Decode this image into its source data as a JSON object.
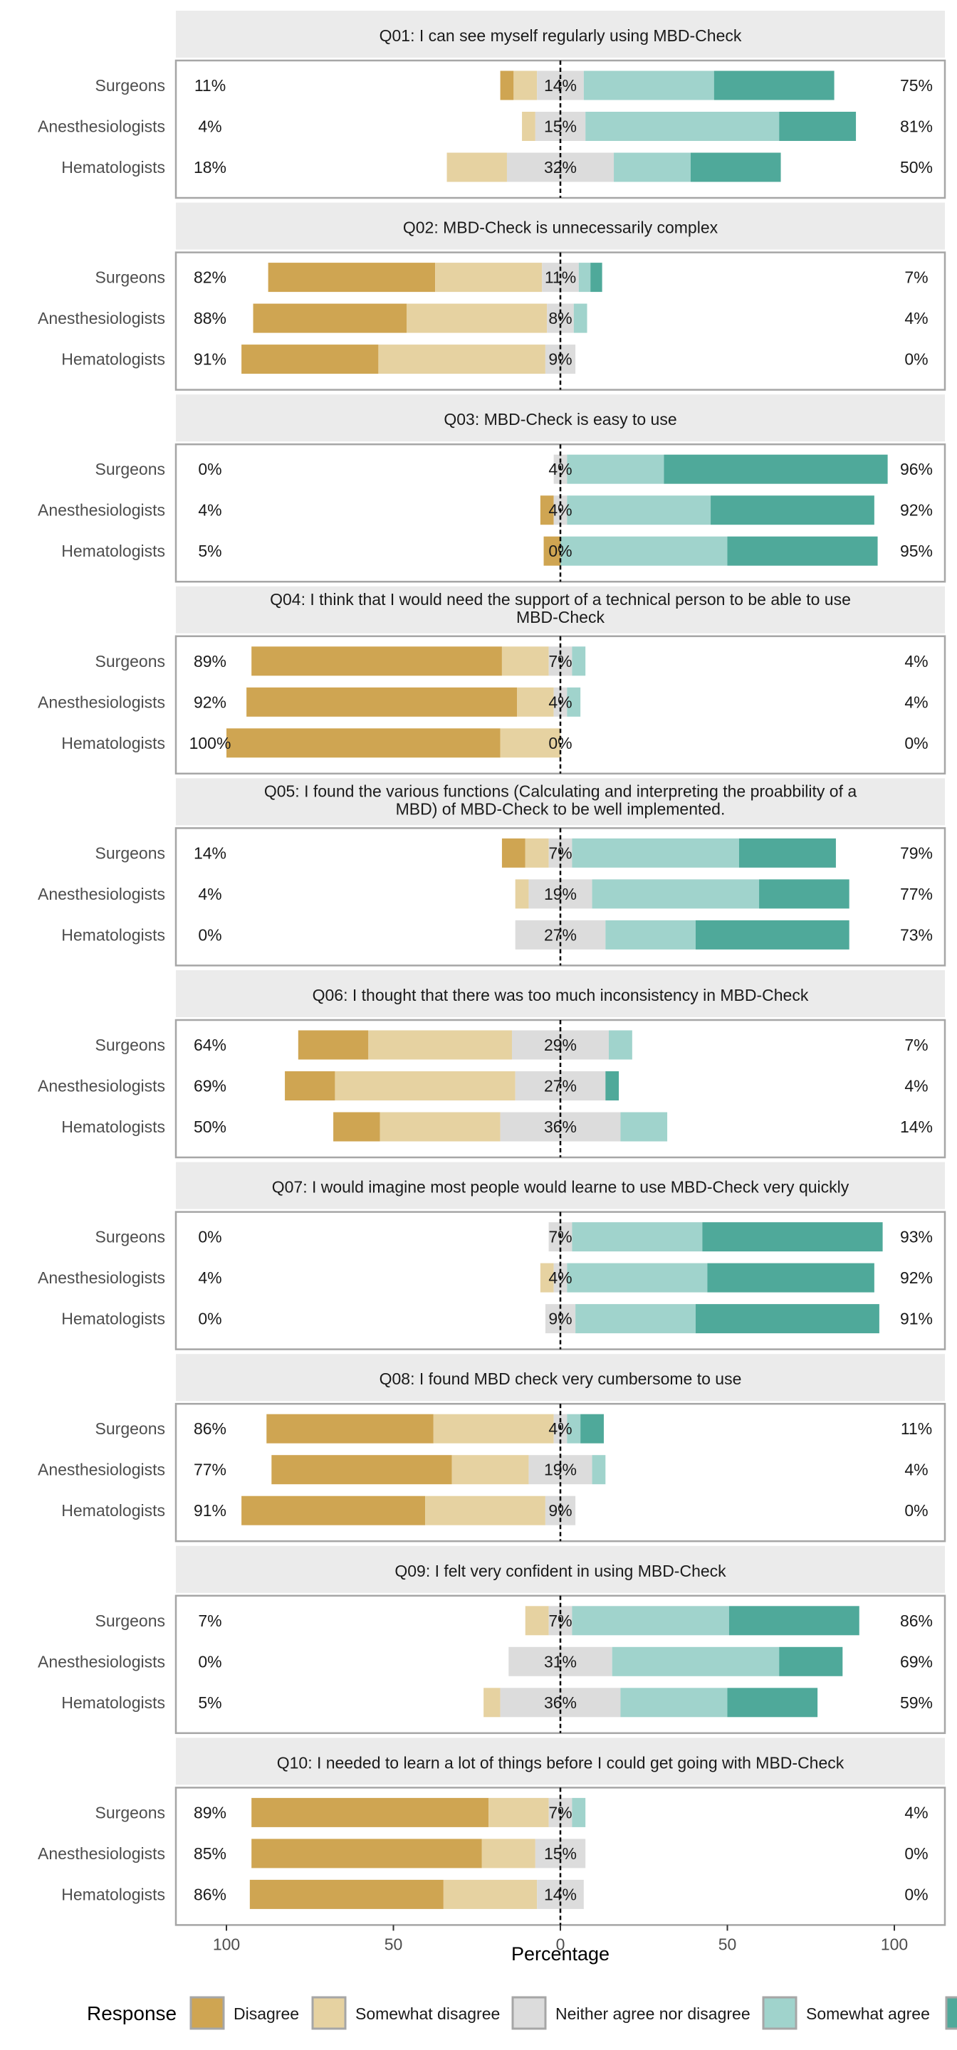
{
  "chart_data": {
    "type": "bar",
    "subtype": "diverging-stacked-likert",
    "xlabel": "Percentage",
    "x_ticks": [
      100,
      50,
      0,
      50,
      100
    ],
    "xlim": [
      -100,
      100
    ],
    "legend": {
      "title": "Response",
      "position": "bottom",
      "entries": [
        "Disagree",
        "Somewhat disagree",
        "Neither agree nor disagree",
        "Somewhat agree",
        "Agree"
      ]
    },
    "colors": {
      "Disagree": "#cfa552",
      "Somewhat disagree": "#e6d2a1",
      "Neither agree nor disagree": "#dcdcdc",
      "Somewhat agree": "#a0d3cc",
      "Agree": "#4fa99a",
      "strip": "#ebebeb",
      "frame": "#a6a6a6"
    },
    "panels": [
      {
        "title": "Q01: I can see myself regularly using MBD-Check",
        "rows": [
          {
            "group": "Surgeons",
            "left_label": "11%",
            "neutral_label": "14%",
            "right_label": "75%",
            "values": [
              4,
              7,
              14,
              39,
              36
            ]
          },
          {
            "group": "Anesthesiologists",
            "left_label": "4%",
            "neutral_label": "15%",
            "right_label": "81%",
            "values": [
              0,
              4,
              15,
              58,
              23
            ]
          },
          {
            "group": "Hematologists",
            "left_label": "18%",
            "neutral_label": "32%",
            "right_label": "50%",
            "values": [
              0,
              18,
              32,
              23,
              27
            ]
          }
        ]
      },
      {
        "title": "Q02: MBD-Check is unnecessarily complex",
        "rows": [
          {
            "group": "Surgeons",
            "left_label": "82%",
            "neutral_label": "11%",
            "right_label": "7%",
            "values": [
              50,
              32,
              11,
              3.5,
              3.5
            ]
          },
          {
            "group": "Anesthesiologists",
            "left_label": "88%",
            "neutral_label": "8%",
            "right_label": "4%",
            "values": [
              46,
              42,
              8,
              4,
              0
            ]
          },
          {
            "group": "Hematologists",
            "left_label": "91%",
            "neutral_label": "9%",
            "right_label": "0%",
            "values": [
              41,
              50,
              9,
              0,
              0
            ]
          }
        ]
      },
      {
        "title": "Q03: MBD-Check is easy to use",
        "rows": [
          {
            "group": "Surgeons",
            "left_label": "0%",
            "neutral_label": "4%",
            "right_label": "96%",
            "values": [
              0,
              0,
              4,
              29,
              67
            ]
          },
          {
            "group": "Anesthesiologists",
            "left_label": "4%",
            "neutral_label": "4%",
            "right_label": "92%",
            "values": [
              4,
              0,
              4,
              43,
              49
            ]
          },
          {
            "group": "Hematologists",
            "left_label": "5%",
            "neutral_label": "0%",
            "right_label": "95%",
            "values": [
              5,
              0,
              0,
              50,
              45
            ]
          }
        ]
      },
      {
        "title": "Q04: I think that I would need the support of a technical person to be able to use MBD-Check",
        "rows": [
          {
            "group": "Surgeons",
            "left_label": "89%",
            "neutral_label": "7%",
            "right_label": "4%",
            "values": [
              75,
              14,
              7,
              4,
              0
            ]
          },
          {
            "group": "Anesthesiologists",
            "left_label": "92%",
            "neutral_label": "4%",
            "right_label": "4%",
            "values": [
              81,
              11,
              4,
              4,
              0
            ]
          },
          {
            "group": "Hematologists",
            "left_label": "100%",
            "neutral_label": "0%",
            "right_label": "0%",
            "values": [
              82,
              18,
              0,
              0,
              0
            ]
          }
        ]
      },
      {
        "title": "Q05: I found the various functions (Calculating and interpreting the proabbility of a MBD) of MBD-Check to be well implemented.",
        "rows": [
          {
            "group": "Surgeons",
            "left_label": "14%",
            "neutral_label": "7%",
            "right_label": "79%",
            "values": [
              7,
              7,
              7,
              50,
              29
            ]
          },
          {
            "group": "Anesthesiologists",
            "left_label": "4%",
            "neutral_label": "19%",
            "right_label": "77%",
            "values": [
              0,
              4,
              19,
              50,
              27
            ]
          },
          {
            "group": "Hematologists",
            "left_label": "0%",
            "neutral_label": "27%",
            "right_label": "73%",
            "values": [
              0,
              0,
              27,
              27,
              46
            ]
          }
        ]
      },
      {
        "title": "Q06: I thought that there was too much inconsistency in MBD-Check",
        "rows": [
          {
            "group": "Surgeons",
            "left_label": "64%",
            "neutral_label": "29%",
            "right_label": "7%",
            "values": [
              21,
              43,
              29,
              7,
              0
            ]
          },
          {
            "group": "Anesthesiologists",
            "left_label": "69%",
            "neutral_label": "27%",
            "right_label": "4%",
            "values": [
              15,
              54,
              27,
              0,
              4
            ]
          },
          {
            "group": "Hematologists",
            "left_label": "50%",
            "neutral_label": "36%",
            "right_label": "14%",
            "values": [
              14,
              36,
              36,
              14,
              0
            ]
          }
        ]
      },
      {
        "title": "Q07: I would imagine most people would learne to use MBD-Check very quickly",
        "rows": [
          {
            "group": "Surgeons",
            "left_label": "0%",
            "neutral_label": "7%",
            "right_label": "93%",
            "values": [
              0,
              0,
              7,
              39,
              54
            ]
          },
          {
            "group": "Anesthesiologists",
            "left_label": "4%",
            "neutral_label": "4%",
            "right_label": "92%",
            "values": [
              0,
              4,
              4,
              42,
              50
            ]
          },
          {
            "group": "Hematologists",
            "left_label": "0%",
            "neutral_label": "9%",
            "right_label": "91%",
            "values": [
              0,
              0,
              9,
              36,
              55
            ]
          }
        ]
      },
      {
        "title": "Q08: I found MBD check very cumbersome to use",
        "rows": [
          {
            "group": "Surgeons",
            "left_label": "86%",
            "neutral_label": "4%",
            "right_label": "11%",
            "values": [
              50,
              36,
              4,
              4,
              7
            ]
          },
          {
            "group": "Anesthesiologists",
            "left_label": "77%",
            "neutral_label": "19%",
            "right_label": "4%",
            "values": [
              54,
              23,
              19,
              4,
              0
            ]
          },
          {
            "group": "Hematologists",
            "left_label": "91%",
            "neutral_label": "9%",
            "right_label": "0%",
            "values": [
              55,
              36,
              9,
              0,
              0
            ]
          }
        ]
      },
      {
        "title": "Q09: I felt very confident in using MBD-Check",
        "rows": [
          {
            "group": "Surgeons",
            "left_label": "7%",
            "neutral_label": "7%",
            "right_label": "86%",
            "values": [
              0,
              7,
              7,
              47,
              39
            ]
          },
          {
            "group": "Anesthesiologists",
            "left_label": "0%",
            "neutral_label": "31%",
            "right_label": "69%",
            "values": [
              0,
              0,
              31,
              50,
              19
            ]
          },
          {
            "group": "Hematologists",
            "left_label": "5%",
            "neutral_label": "36%",
            "right_label": "59%",
            "values": [
              0,
              5,
              36,
              32,
              27
            ]
          }
        ]
      },
      {
        "title": "Q10: I needed to learn a lot of things before I could get going with MBD-Check",
        "rows": [
          {
            "group": "Surgeons",
            "left_label": "89%",
            "neutral_label": "7%",
            "right_label": "4%",
            "values": [
              71,
              18,
              7,
              4,
              0
            ]
          },
          {
            "group": "Anesthesiologists",
            "left_label": "85%",
            "neutral_label": "15%",
            "right_label": "0%",
            "values": [
              69,
              16,
              15,
              0,
              0
            ]
          },
          {
            "group": "Hematologists",
            "left_label": "86%",
            "neutral_label": "14%",
            "right_label": "0%",
            "values": [
              58,
              28,
              14,
              0,
              0
            ]
          }
        ]
      }
    ]
  }
}
